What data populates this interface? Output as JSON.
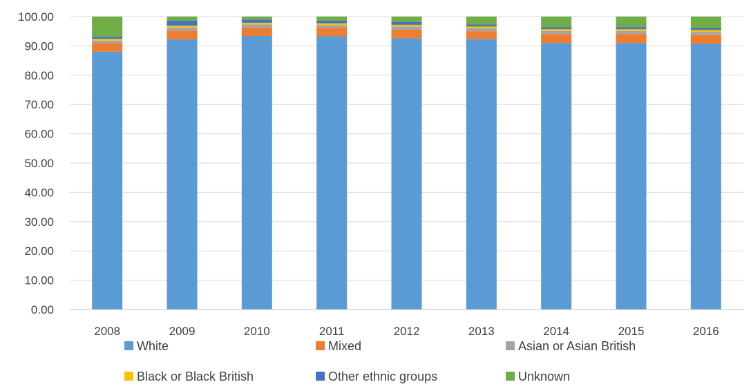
{
  "chart_data": {
    "type": "bar",
    "stacked": true,
    "title": "",
    "xlabel": "",
    "ylabel": "",
    "categories": [
      "2008",
      "2009",
      "2010",
      "2011",
      "2012",
      "2013",
      "2014",
      "2015",
      "2016"
    ],
    "ylim": [
      0,
      100
    ],
    "yticks": [
      "0.00",
      "10.00",
      "20.00",
      "30.00",
      "40.00",
      "50.00",
      "60.00",
      "70.00",
      "80.00",
      "90.00",
      "100.00"
    ],
    "grid": true,
    "legend_position": "bottom",
    "series": [
      {
        "name": "White",
        "color": "#5B9BD5",
        "values": [
          88.0,
          92.2,
          93.4,
          93.3,
          92.6,
          92.3,
          91.0,
          91.0,
          90.7
        ]
      },
      {
        "name": "Mixed",
        "color": "#ED7D31",
        "values": [
          2.8,
          3.0,
          2.8,
          2.8,
          2.9,
          2.7,
          3.0,
          3.0,
          3.0
        ]
      },
      {
        "name": "Asian or Asian British",
        "color": "#A5A5A5",
        "values": [
          1.0,
          1.1,
          1.1,
          1.0,
          1.1,
          1.0,
          1.1,
          1.1,
          1.1
        ]
      },
      {
        "name": "Black or Black British",
        "color": "#FFC000",
        "values": [
          0.6,
          0.6,
          0.6,
          0.6,
          0.6,
          0.6,
          0.6,
          0.6,
          0.6
        ]
      },
      {
        "name": "Other ethnic groups",
        "color": "#4472C4",
        "values": [
          0.7,
          1.7,
          1.1,
          0.9,
          1.0,
          0.7,
          0.7,
          0.7,
          0.7
        ]
      },
      {
        "name": "Unknown",
        "color": "#70AD47",
        "values": [
          6.9,
          1.4,
          1.0,
          1.4,
          1.8,
          2.7,
          3.6,
          3.6,
          3.9
        ]
      }
    ]
  }
}
